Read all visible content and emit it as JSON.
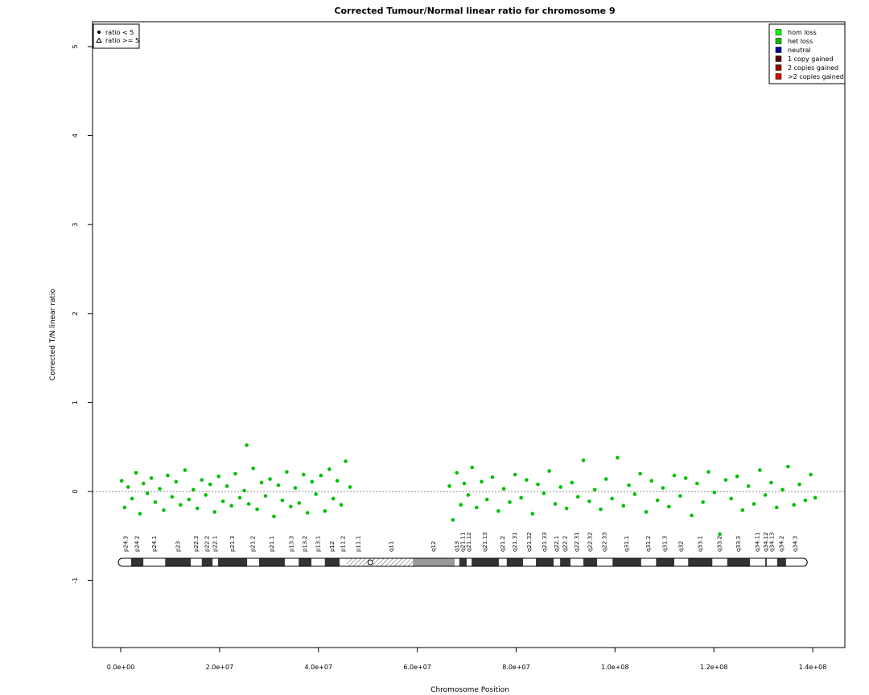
{
  "chart_data": {
    "type": "scatter",
    "title": "Corrected Tumour/Normal linear ratio for chromosome  9",
    "x_label": "Chromosome Position",
    "y_label": "Corrected T/N linear ratio",
    "xlim": [
      -5700000.0,
      146500000.0
    ],
    "ylim": [
      -1.754,
      5.28
    ],
    "xticks": [
      {
        "value": 0,
        "label": "0.0e+00"
      },
      {
        "value": 20000000.0,
        "label": "2.0e+07"
      },
      {
        "value": 40000000.0,
        "label": "4.0e+07"
      },
      {
        "value": 60000000.0,
        "label": "6.0e+07"
      },
      {
        "value": 80000000.0,
        "label": "8.0e+07"
      },
      {
        "value": 100000000.0,
        "label": "1.0e+08"
      },
      {
        "value": 120000000.0,
        "label": "1.2e+08"
      },
      {
        "value": 140000000.0,
        "label": "1.4e+08"
      }
    ],
    "yticks": [
      -1,
      0,
      1,
      2,
      3,
      4,
      5
    ],
    "hline": 0,
    "series": [
      {
        "name": "ratio < 5",
        "color": "#00c000",
        "x": [
          200000.0,
          800000.0,
          1500000.0,
          2300000.0,
          3100000.0,
          3900000.0,
          4600000.0,
          5400000.0,
          6200000.0,
          7000000.0,
          7900000.0,
          8700000.0,
          9500000.0,
          10400000.0,
          11200000.0,
          12100000.0,
          13000000.0,
          13800000.0,
          14700000.0,
          15500000.0,
          16400000.0,
          17200000.0,
          18100000.0,
          19000000.0,
          19800000.0,
          20700000.0,
          21500000.0,
          22400000.0,
          23200000.0,
          24100000.0,
          25000000.0,
          25500000.0,
          25900000.0,
          26800000.0,
          27600000.0,
          28500000.0,
          29300000.0,
          30200000.0,
          31000000.0,
          31900000.0,
          32700000.0,
          33600000.0,
          34400000.0,
          35300000.0,
          36100000.0,
          37000000.0,
          37800000.0,
          38700000.0,
          39500000.0,
          40500000.0,
          41300000.0,
          42200000.0,
          43000000.0,
          43800000.0,
          44600000.0,
          45500000.0,
          46400000.0,
          66500000.0,
          67200000.0,
          68000000.0,
          68800000.0,
          69500000.0,
          70300000.0,
          71100000.0,
          72000000.0,
          73000000.0,
          74100000.0,
          75200000.0,
          76400000.0,
          77500000.0,
          78700000.0,
          79800000.0,
          81000000.0,
          82100000.0,
          83300000.0,
          84400000.0,
          85600000.0,
          86700000.0,
          87900000.0,
          89000000.0,
          90200000.0,
          91300000.0,
          92500000.0,
          93600000.0,
          94800000.0,
          95900000.0,
          97100000.0,
          98200000.0,
          99400000.0,
          100500000.0,
          101700000.0,
          102800000.0,
          104000000.0,
          105100000.0,
          106300000.0,
          107400000.0,
          108600000.0,
          109700000.0,
          110900000.0,
          112000000.0,
          113200000.0,
          114300000.0,
          115500000.0,
          116600000.0,
          117800000.0,
          118900000.0,
          120100000.0,
          121200000.0,
          122400000.0,
          123500000.0,
          124700000.0,
          125800000.0,
          127000000.0,
          128100000.0,
          129300000.0,
          130400000.0,
          131600000.0,
          132700000.0,
          133900000.0,
          135000000.0,
          136200000.0,
          137300000.0,
          138500000.0,
          139600000.0,
          140500000.0
        ],
        "y": [
          0.12,
          -0.18,
          0.05,
          -0.08,
          0.21,
          -0.25,
          0.09,
          -0.02,
          0.15,
          -0.12,
          0.03,
          -0.21,
          0.18,
          -0.06,
          0.11,
          -0.15,
          0.24,
          -0.09,
          0.02,
          -0.19,
          0.13,
          -0.04,
          0.08,
          -0.23,
          0.17,
          -0.11,
          0.06,
          -0.16,
          0.2,
          -0.07,
          0.01,
          0.52,
          -0.14,
          0.26,
          -0.2,
          0.1,
          -0.05,
          0.14,
          -0.28,
          0.07,
          -0.1,
          0.22,
          -0.17,
          0.04,
          -0.13,
          0.19,
          -0.24,
          0.11,
          -0.03,
          0.18,
          -0.22,
          0.25,
          -0.08,
          0.12,
          -0.15,
          0.34,
          0.05,
          0.06,
          -0.32,
          0.21,
          -0.15,
          0.09,
          -0.04,
          0.27,
          -0.18,
          0.11,
          -0.09,
          0.16,
          -0.22,
          0.03,
          -0.12,
          0.19,
          -0.07,
          0.13,
          -0.25,
          0.08,
          -0.02,
          0.23,
          -0.14,
          0.05,
          -0.19,
          0.1,
          -0.06,
          0.35,
          -0.11,
          0.02,
          -0.2,
          0.14,
          -0.08,
          0.38,
          -0.16,
          0.07,
          -0.03,
          0.2,
          -0.23,
          0.12,
          -0.1,
          0.04,
          -0.17,
          0.18,
          -0.05,
          0.15,
          -0.27,
          0.09,
          -0.12,
          0.22,
          -0.01,
          -0.48,
          0.13,
          -0.08,
          0.17,
          -0.21,
          0.06,
          -0.14,
          0.24,
          -0.04,
          0.1,
          -0.18,
          0.02,
          0.28,
          -0.15,
          0.08,
          -0.1,
          0.19,
          -0.07
        ]
      }
    ],
    "shape_legend": [
      "ratio < 5",
      "ratio >= 5"
    ],
    "color_legend": [
      {
        "label": "hom loss",
        "color": "#00ff00"
      },
      {
        "label": "het loss",
        "color": "#00c000"
      },
      {
        "label": "neutral",
        "color": "#0000a0"
      },
      {
        "label": "1 copy gained",
        "color": "#600000"
      },
      {
        "label": "2 copies gained",
        "color": "#a00000"
      },
      {
        "label": ">2 copies gained",
        "color": "#e00000"
      }
    ],
    "bands": [
      {
        "name": "p24.3",
        "start": 0,
        "end": 2100000.0,
        "stain": "gneg"
      },
      {
        "name": "p24.2",
        "start": 2100000.0,
        "end": 4600000.0,
        "stain": "gpos"
      },
      {
        "name": "p24.1",
        "start": 4600000.0,
        "end": 9000000.0,
        "stain": "gneg"
      },
      {
        "name": "p23",
        "start": 9000000.0,
        "end": 14200000.0,
        "stain": "gpos"
      },
      {
        "name": "p22.3",
        "start": 14200000.0,
        "end": 16400000.0,
        "stain": "gneg"
      },
      {
        "name": "p22.2",
        "start": 16400000.0,
        "end": 18600000.0,
        "stain": "gpos"
      },
      {
        "name": "p22.1",
        "start": 18600000.0,
        "end": 19700000.0,
        "stain": "gneg"
      },
      {
        "name": "p21.3",
        "start": 19700000.0,
        "end": 25600000.0,
        "stain": "gpos"
      },
      {
        "name": "p21.2",
        "start": 25600000.0,
        "end": 28000000.0,
        "stain": "gneg"
      },
      {
        "name": "p21.1",
        "start": 28000000.0,
        "end": 33200000.0,
        "stain": "gpos"
      },
      {
        "name": "p13.3",
        "start": 33200000.0,
        "end": 36000000.0,
        "stain": "gneg"
      },
      {
        "name": "p13.2",
        "start": 36000000.0,
        "end": 38600000.0,
        "stain": "gpos"
      },
      {
        "name": "p13.1",
        "start": 38600000.0,
        "end": 41300000.0,
        "stain": "gneg"
      },
      {
        "name": "p12",
        "start": 41300000.0,
        "end": 44300000.0,
        "stain": "gpos"
      },
      {
        "name": "p11.2",
        "start": 44300000.0,
        "end": 45700000.0,
        "stain": "gneg"
      },
      {
        "name": "p11.1",
        "start": 45700000.0,
        "end": 50500000.0,
        "stain": "acen"
      },
      {
        "name": "q11",
        "start": 50500000.0,
        "end": 59100000.0,
        "stain": "acen"
      },
      {
        "name": "q12",
        "start": 59100000.0,
        "end": 67600000.0,
        "stain": "gvar"
      },
      {
        "name": "q13",
        "start": 67600000.0,
        "end": 68500000.0,
        "stain": "gneg"
      },
      {
        "name": "q21.11",
        "start": 68500000.0,
        "end": 70000000.0,
        "stain": "gpos"
      },
      {
        "name": "q21.12",
        "start": 70000000.0,
        "end": 71000000.0,
        "stain": "gneg"
      },
      {
        "name": "q21.13",
        "start": 71000000.0,
        "end": 76500000.0,
        "stain": "gpos"
      },
      {
        "name": "q21.2",
        "start": 76500000.0,
        "end": 78100000.0,
        "stain": "gneg"
      },
      {
        "name": "q21.31",
        "start": 78100000.0,
        "end": 81400000.0,
        "stain": "gpos"
      },
      {
        "name": "q21.32",
        "start": 81400000.0,
        "end": 84000000.0,
        "stain": "gneg"
      },
      {
        "name": "q21.33",
        "start": 84000000.0,
        "end": 87600000.0,
        "stain": "gpos"
      },
      {
        "name": "q22.1",
        "start": 87600000.0,
        "end": 88900000.0,
        "stain": "gneg"
      },
      {
        "name": "q22.2",
        "start": 88900000.0,
        "end": 91000000.0,
        "stain": "gpos"
      },
      {
        "name": "q22.31",
        "start": 91000000.0,
        "end": 93600000.0,
        "stain": "gneg"
      },
      {
        "name": "q22.32",
        "start": 93600000.0,
        "end": 96400000.0,
        "stain": "gpos"
      },
      {
        "name": "q22.33",
        "start": 96400000.0,
        "end": 99500000.0,
        "stain": "gneg"
      },
      {
        "name": "q31.1",
        "start": 99500000.0,
        "end": 105300000.0,
        "stain": "gpos"
      },
      {
        "name": "q31.2",
        "start": 105300000.0,
        "end": 108300000.0,
        "stain": "gneg"
      },
      {
        "name": "q31.3",
        "start": 108300000.0,
        "end": 112000000.0,
        "stain": "gpos"
      },
      {
        "name": "q32",
        "start": 112000000.0,
        "end": 114800000.0,
        "stain": "gneg"
      },
      {
        "name": "q33.1",
        "start": 114800000.0,
        "end": 119700000.0,
        "stain": "gpos"
      },
      {
        "name": "q33.2",
        "start": 119700000.0,
        "end": 122700000.0,
        "stain": "gneg"
      },
      {
        "name": "q33.3",
        "start": 122700000.0,
        "end": 127300000.0,
        "stain": "gpos"
      },
      {
        "name": "q34.11",
        "start": 127300000.0,
        "end": 130400000.0,
        "stain": "gneg"
      },
      {
        "name": "q34.12",
        "start": 130400000.0,
        "end": 130700000.0,
        "stain": "gpos"
      },
      {
        "name": "q34.13",
        "start": 130700000.0,
        "end": 132800000.0,
        "stain": "gneg"
      },
      {
        "name": "q34.2",
        "start": 132800000.0,
        "end": 134600000.0,
        "stain": "gpos"
      },
      {
        "name": "q34.3",
        "start": 134600000.0,
        "end": 138400000.0,
        "stain": "gneg"
      }
    ]
  }
}
